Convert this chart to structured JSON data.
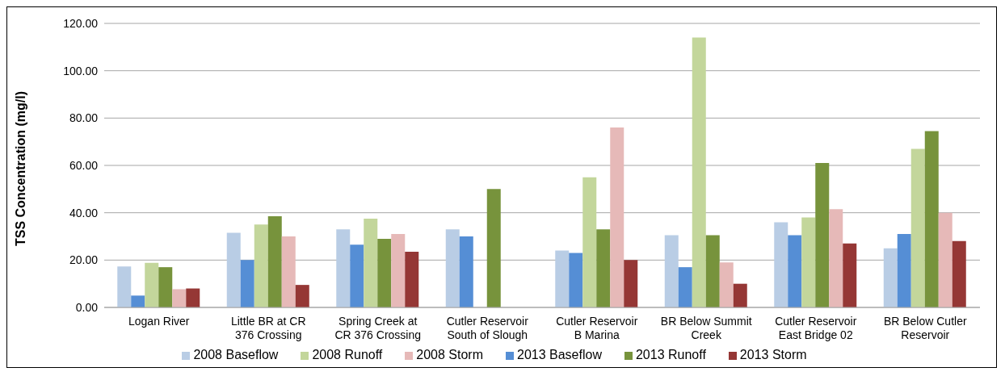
{
  "chart_data": {
    "type": "bar",
    "ylabel": "TSS Concentration (mg/l)",
    "categories": [
      "Logan River",
      "Little BR at CR 376 Crossing",
      "Spring Creek at CR 376 Crossing",
      "Cutler Reservoir South of Slough",
      "Cutler Reservoir B Marina",
      "BR Below Summit Creek",
      "Cutler Reservoir East Bridge 02",
      "BR Below Cutler Reservoir"
    ],
    "series": [
      {
        "name": "2008 Baseflow",
        "color": "#b9cde5",
        "values": [
          17.3,
          31.5,
          33,
          33,
          24,
          30.5,
          36,
          25
        ]
      },
      {
        "name": "2013 Baseflow",
        "color": "#558ed5",
        "values": [
          5,
          20,
          26.5,
          30,
          23,
          17,
          30.5,
          31
        ]
      },
      {
        "name": "2008 Runoff",
        "color": "#c3d69b",
        "values": [
          18.8,
          35,
          37.5,
          null,
          55,
          114,
          38,
          67
        ]
      },
      {
        "name": "2013 Runoff",
        "color": "#77933c",
        "values": [
          17,
          38.5,
          29,
          50,
          33,
          30.5,
          61,
          74.5
        ]
      },
      {
        "name": "2008 Storm",
        "color": "#e6b9b8",
        "values": [
          7.7,
          30,
          31,
          null,
          76,
          19,
          41.5,
          40
        ]
      },
      {
        "name": "2013 Storm",
        "color": "#953735",
        "values": [
          8,
          9.5,
          23.5,
          null,
          20,
          10,
          27,
          28
        ]
      }
    ],
    "ylim": [
      0,
      120
    ],
    "yticks": [
      {
        "value": 0,
        "label": "0.00"
      },
      {
        "value": 20,
        "label": "20.00"
      },
      {
        "value": 40,
        "label": "40.00"
      },
      {
        "value": 60,
        "label": "60.00"
      },
      {
        "value": 80,
        "label": "80.00"
      },
      {
        "value": 100,
        "label": "100.00"
      },
      {
        "value": 120,
        "label": "120.00"
      }
    ],
    "grid": "y",
    "legend": "bottom"
  }
}
